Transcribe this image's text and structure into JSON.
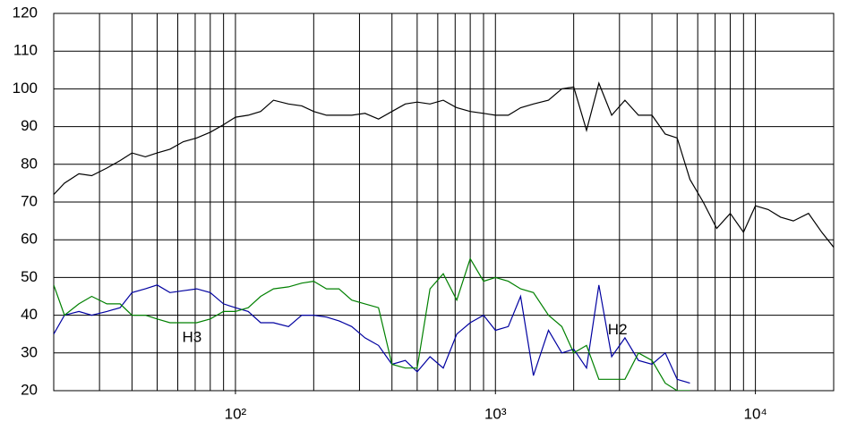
{
  "chart_data": {
    "type": "line",
    "log_x": true,
    "grid": true,
    "x": [
      20,
      22,
      25,
      28,
      32,
      36,
      40,
      45,
      50,
      56,
      63,
      71,
      80,
      90,
      100,
      112,
      125,
      140,
      160,
      180,
      200,
      224,
      250,
      280,
      315,
      355,
      400,
      450,
      500,
      560,
      630,
      710,
      800,
      900,
      1000,
      1120,
      1250,
      1400,
      1600,
      1800,
      2000,
      2240,
      2500,
      2800,
      3150,
      3550,
      4000,
      4500,
      5000,
      5600,
      6300,
      7100,
      8000,
      9000,
      10000,
      11200,
      12500,
      14000,
      16000,
      18000,
      20000
    ],
    "series": [
      {
        "color": "#000000",
        "values": [
          72,
          75,
          77.5,
          77,
          79,
          81,
          83,
          82,
          83,
          84,
          86,
          87,
          88.5,
          90.5,
          92.5,
          93,
          94,
          97,
          96,
          95.5,
          94,
          93,
          93,
          93,
          93.5,
          92,
          94,
          96,
          96.5,
          96,
          97,
          95,
          94,
          93.5,
          93,
          93,
          95,
          96,
          97,
          100,
          100.5,
          89,
          101.5,
          93,
          97,
          93,
          93,
          88,
          87,
          76,
          70,
          63,
          67,
          62,
          69,
          68,
          66,
          65,
          67,
          62,
          58
        ]
      },
      {
        "color": "#0000a0",
        "values": [
          35,
          40,
          41,
          40,
          41,
          42,
          46,
          47,
          48,
          46,
          46.5,
          47,
          46,
          43,
          42,
          41,
          38,
          38,
          37,
          40,
          40,
          39.5,
          38.5,
          37,
          34,
          32,
          27,
          28,
          25,
          29,
          26,
          35,
          38,
          40,
          36,
          37,
          45,
          24,
          36,
          30,
          31,
          26,
          48,
          29,
          34,
          28,
          27,
          30,
          23,
          22,
          null,
          null,
          null,
          null,
          null,
          null,
          null,
          null,
          null,
          null,
          null
        ]
      },
      {
        "color": "#008000",
        "values": [
          48,
          40,
          43,
          45,
          43,
          43,
          40,
          40,
          39,
          38,
          38,
          38,
          39,
          41,
          41,
          42,
          45,
          47,
          47.5,
          48.5,
          49,
          47,
          47,
          44,
          43,
          42,
          27,
          26,
          26,
          47,
          51,
          44,
          55,
          49,
          50,
          49,
          47,
          46,
          40,
          37,
          30,
          32,
          23,
          23,
          23,
          30,
          28,
          22,
          20,
          20,
          null,
          null,
          null,
          null,
          null,
          null,
          null,
          null,
          null,
          null,
          null
        ]
      }
    ],
    "xlim": [
      20,
      20000
    ],
    "xticks": [
      {
        "value": 100,
        "label": "10²"
      },
      {
        "value": 1000,
        "label": "10³"
      },
      {
        "value": 10000,
        "label": "10⁴"
      }
    ],
    "x_grid": [
      20,
      30,
      40,
      50,
      60,
      70,
      80,
      90,
      100,
      200,
      300,
      400,
      500,
      600,
      700,
      800,
      900,
      1000,
      2000,
      3000,
      4000,
      5000,
      6000,
      7000,
      8000,
      9000,
      10000,
      20000
    ],
    "ylim": [
      20,
      120
    ],
    "yticks": [
      20,
      30,
      40,
      50,
      60,
      70,
      80,
      90,
      100,
      110,
      120
    ],
    "annotations": [
      {
        "text": "H3",
        "x": 68,
        "y": 34
      },
      {
        "text": "H2",
        "x": 2950,
        "y": 36
      }
    ]
  }
}
